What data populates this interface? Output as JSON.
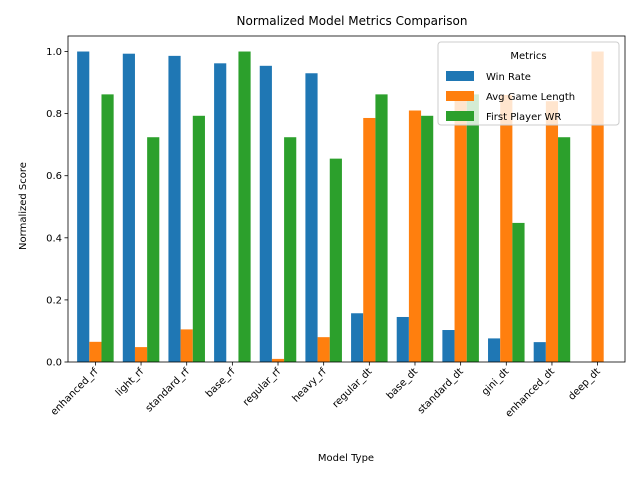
{
  "chart_data": {
    "type": "bar",
    "title": "Normalized Model Metrics Comparison",
    "xlabel": "Model Type",
    "ylabel": "Normalized Score",
    "ylim": [
      0,
      1.05
    ],
    "yticks": [
      "0.0",
      "0.2",
      "0.4",
      "0.6",
      "0.8",
      "1.0"
    ],
    "ytick_values": [
      0,
      0.2,
      0.4,
      0.6,
      0.8,
      1.0
    ],
    "categories": [
      "enhanced_rf",
      "light_rf",
      "standard_rf",
      "base_rf",
      "regular_rf",
      "heavy_rf",
      "regular_dt",
      "base_dt",
      "standard_dt",
      "gini_dt",
      "enhanced_dt",
      "deep_dt"
    ],
    "series": [
      {
        "name": "Win Rate",
        "color": "#1f77b4",
        "values": [
          1.0,
          0.993,
          0.986,
          0.962,
          0.954,
          0.93,
          0.157,
          0.145,
          0.103,
          0.076,
          0.064,
          0.0
        ]
      },
      {
        "name": "Avg Game Length",
        "color": "#ff7f0e",
        "values": [
          0.065,
          0.048,
          0.105,
          0.0,
          0.01,
          0.08,
          0.786,
          0.81,
          0.85,
          0.86,
          0.84,
          1.0
        ]
      },
      {
        "name": "First Player WR",
        "color": "#2ca02c",
        "values": [
          0.862,
          0.724,
          0.793,
          1.0,
          0.724,
          0.655,
          0.862,
          0.793,
          0.862,
          0.448,
          0.724,
          0.0
        ]
      }
    ],
    "legend": {
      "title": "Metrics",
      "position": "top-right"
    },
    "grid": false
  }
}
